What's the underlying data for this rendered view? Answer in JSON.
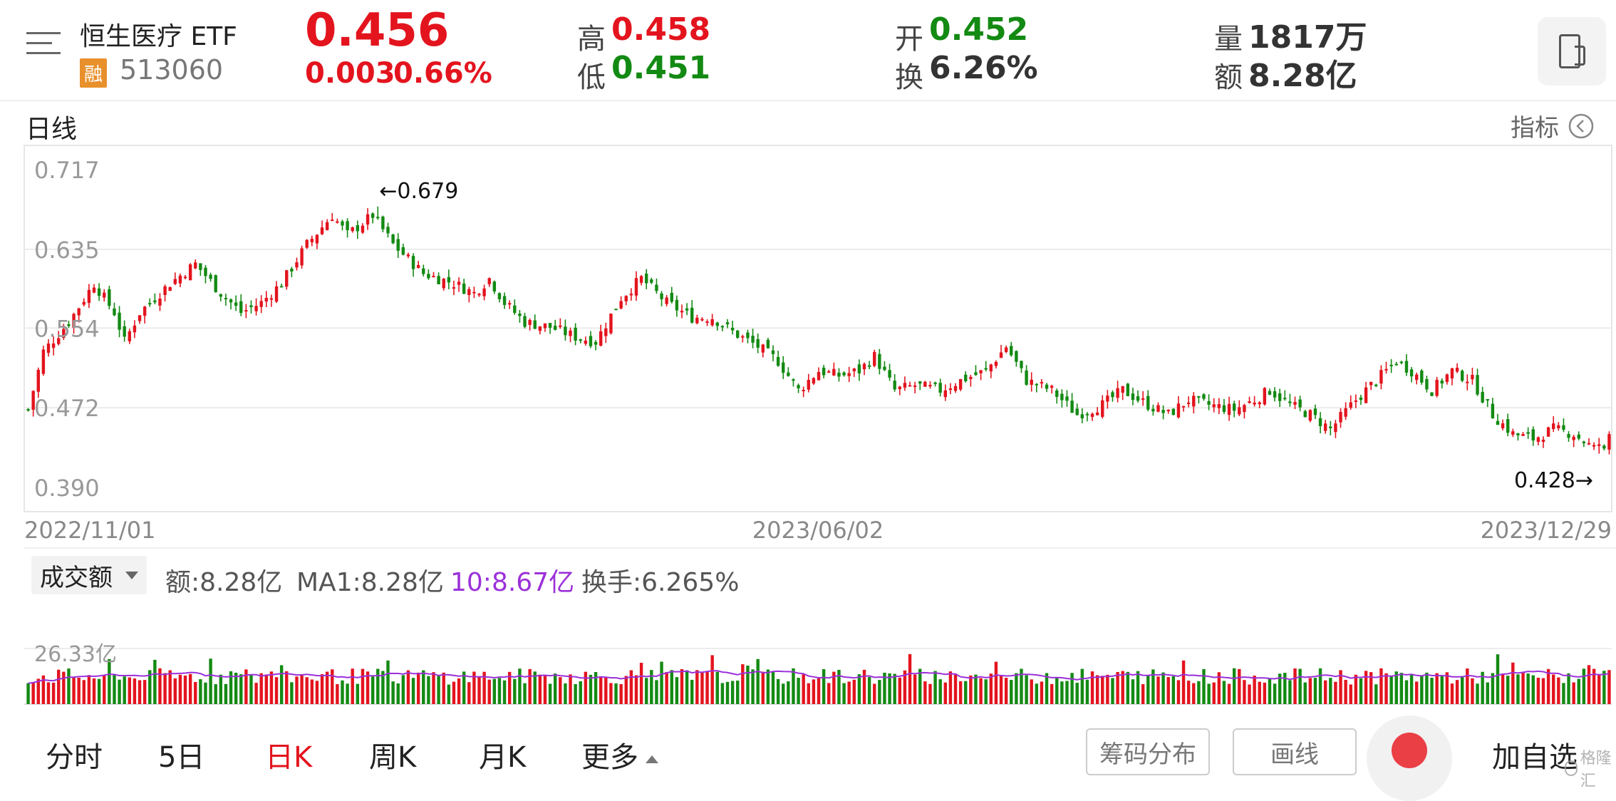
{
  "header": {
    "name": "恒生医疗 ETF",
    "rong_badge": "融",
    "code": "513060",
    "price": "0.456",
    "change": "0.003",
    "change_pct": "0.66%",
    "high_label": "高",
    "high": "0.458",
    "low_label": "低",
    "low": "0.451",
    "open_label": "开",
    "open": "0.452",
    "turnover_label": "换",
    "turnover": "6.26%",
    "volume_label": "量",
    "volume": "1817万",
    "amount_label": "额",
    "amount": "8.28亿"
  },
  "chart_header": {
    "period": "日线",
    "indicator": "指标"
  },
  "colors": {
    "up": "#e3141e",
    "down": "#138a13",
    "ma10": "#9b30d9"
  },
  "chart_data": [
    {
      "type": "candlestick",
      "title": "日线",
      "y_ticks": [
        "0.717",
        "0.635",
        "0.554",
        "0.472",
        "0.390"
      ],
      "ylim": [
        0.39,
        0.717
      ],
      "x_ticks": [
        "2022/11/01",
        "2023/06/02",
        "2023/12/29"
      ],
      "max_annotation": "←0.679",
      "max_value": 0.679,
      "min_annotation": "0.428→",
      "min_value": 0.428,
      "grid": true,
      "close_path": [
        [
          0,
          0.47
        ],
        [
          3,
          0.53
        ],
        [
          8,
          0.56
        ],
        [
          13,
          0.6
        ],
        [
          17,
          0.57
        ],
        [
          19,
          0.54
        ],
        [
          22,
          0.57
        ],
        [
          28,
          0.6
        ],
        [
          33,
          0.62
        ],
        [
          38,
          0.59
        ],
        [
          42,
          0.57
        ],
        [
          46,
          0.58
        ],
        [
          50,
          0.6
        ],
        [
          55,
          0.64
        ],
        [
          60,
          0.67
        ],
        [
          63,
          0.65
        ],
        [
          68,
          0.67
        ],
        [
          72,
          0.64
        ],
        [
          78,
          0.61
        ],
        [
          84,
          0.6
        ],
        [
          88,
          0.59
        ],
        [
          91,
          0.605
        ],
        [
          94,
          0.58
        ],
        [
          98,
          0.56
        ],
        [
          103,
          0.555
        ],
        [
          108,
          0.545
        ],
        [
          112,
          0.54
        ],
        [
          117,
          0.585
        ],
        [
          121,
          0.605
        ],
        [
          126,
          0.58
        ],
        [
          131,
          0.565
        ],
        [
          135,
          0.565
        ],
        [
          139,
          0.55
        ],
        [
          144,
          0.535
        ],
        [
          148,
          0.52
        ],
        [
          152,
          0.49
        ],
        [
          156,
          0.51
        ],
        [
          160,
          0.505
        ],
        [
          164,
          0.51
        ],
        [
          167,
          0.525
        ],
        [
          171,
          0.49
        ],
        [
          175,
          0.495
        ],
        [
          180,
          0.49
        ],
        [
          184,
          0.5
        ],
        [
          189,
          0.51
        ],
        [
          193,
          0.535
        ],
        [
          197,
          0.5
        ],
        [
          202,
          0.49
        ],
        [
          207,
          0.465
        ],
        [
          212,
          0.475
        ],
        [
          216,
          0.49
        ],
        [
          221,
          0.475
        ],
        [
          225,
          0.465
        ],
        [
          229,
          0.48
        ],
        [
          233,
          0.475
        ],
        [
          238,
          0.47
        ],
        [
          242,
          0.48
        ],
        [
          245,
          0.49
        ],
        [
          249,
          0.475
        ],
        [
          253,
          0.465
        ],
        [
          257,
          0.45
        ],
        [
          262,
          0.48
        ],
        [
          266,
          0.5
        ],
        [
          270,
          0.52
        ],
        [
          273,
          0.51
        ],
        [
          277,
          0.49
        ],
        [
          281,
          0.51
        ],
        [
          285,
          0.5
        ],
        [
          289,
          0.465
        ],
        [
          293,
          0.445
        ],
        [
          297,
          0.44
        ],
        [
          301,
          0.45
        ],
        [
          305,
          0.445
        ],
        [
          309,
          0.43
        ],
        [
          312,
          0.445
        ]
      ]
    },
    {
      "type": "bar",
      "title": "成交额",
      "y_max_label": "26.33亿",
      "series_ma10_name": "10"
    }
  ],
  "volume_panel": {
    "selector": "成交额",
    "amount_text": "额:8.28亿",
    "ma1_text": "MA1:8.28亿",
    "ma10_text": "10:8.67亿",
    "turnover_text": "换手:6.265%",
    "y_max_label": "26.33亿"
  },
  "bottom_tabs": [
    {
      "label": "分时",
      "active": false
    },
    {
      "label": "5日",
      "active": false
    },
    {
      "label": "日K",
      "active": true
    },
    {
      "label": "周K",
      "active": false
    },
    {
      "label": "月K",
      "active": false
    },
    {
      "label": "更多",
      "active": false
    }
  ],
  "bottom_buttons": {
    "chips": "筹码分布",
    "draw": "画线",
    "add_watch": "加自选"
  },
  "watermark": "格隆汇"
}
